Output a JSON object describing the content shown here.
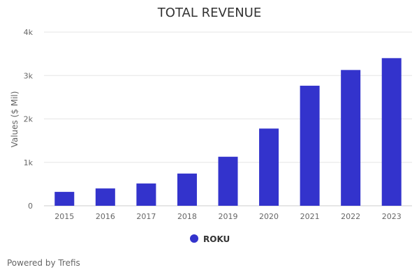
{
  "chart_data": {
    "type": "bar",
    "title": "TOTAL REVENUE",
    "xlabel": "",
    "ylabel": "Values ($ Mil)",
    "categories": [
      "2015",
      "2016",
      "2017",
      "2018",
      "2019",
      "2020",
      "2021",
      "2022",
      "2023"
    ],
    "series": [
      {
        "name": "ROKU",
        "color": "#3333CC",
        "values": [
          320,
          399,
          513,
          742,
          1129,
          1778,
          2765,
          3127,
          3400
        ]
      }
    ],
    "ylim": [
      0,
      4000
    ],
    "yticks": [
      0,
      1000,
      2000,
      3000,
      4000
    ],
    "ytick_labels": [
      "0",
      "1k",
      "2k",
      "3k",
      "4k"
    ],
    "grid": true,
    "legend": "bottom-center"
  },
  "footer": {
    "credits": "Powered by Trefis"
  }
}
